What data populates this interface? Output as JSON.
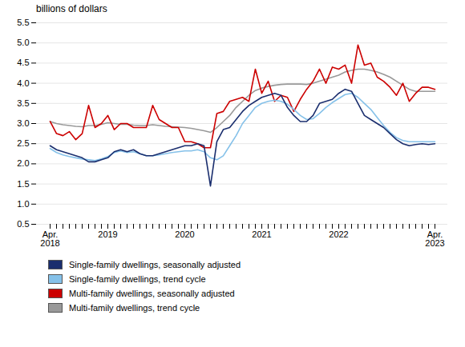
{
  "chart_data": {
    "type": "line",
    "title": "billions of dollars",
    "categories": [
      "Apr.\n2018",
      null,
      null,
      null,
      null,
      null,
      null,
      null,
      null,
      "2019",
      null,
      null,
      null,
      null,
      null,
      null,
      null,
      null,
      null,
      null,
      null,
      "2020",
      null,
      null,
      null,
      null,
      null,
      null,
      null,
      null,
      null,
      null,
      null,
      "2021",
      null,
      null,
      null,
      null,
      null,
      null,
      null,
      null,
      null,
      null,
      null,
      "2022",
      null,
      null,
      null,
      null,
      null,
      null,
      null,
      null,
      null,
      null,
      null,
      null,
      null,
      null,
      "Apr.\n2023"
    ],
    "series": [
      {
        "name": "Single-family dwellings, seasonally adjusted",
        "color": "#1a2e6e",
        "values": [
          2.45,
          2.35,
          2.3,
          2.25,
          2.2,
          2.15,
          2.05,
          2.05,
          2.1,
          2.15,
          2.3,
          2.35,
          2.3,
          2.35,
          2.25,
          2.2,
          2.2,
          2.25,
          2.3,
          2.35,
          2.4,
          2.45,
          2.45,
          2.5,
          2.45,
          1.45,
          2.55,
          2.85,
          2.9,
          3.1,
          3.3,
          3.45,
          3.55,
          3.65,
          3.7,
          3.75,
          3.7,
          3.4,
          3.2,
          3.05,
          3.05,
          3.2,
          3.5,
          3.55,
          3.6,
          3.75,
          3.85,
          3.8,
          3.5,
          3.2,
          3.1,
          3.0,
          2.9,
          2.75,
          2.6,
          2.5,
          2.45,
          2.48,
          2.5,
          2.48,
          2.5
        ]
      },
      {
        "name": "Single-family dwellings, trend cycle",
        "color": "#85c1e9",
        "values": [
          2.38,
          2.28,
          2.22,
          2.18,
          2.15,
          2.12,
          2.1,
          2.08,
          2.12,
          2.18,
          2.28,
          2.32,
          2.28,
          2.3,
          2.25,
          2.2,
          2.2,
          2.22,
          2.25,
          2.28,
          2.3,
          2.32,
          2.32,
          2.35,
          2.3,
          2.15,
          2.1,
          2.2,
          2.45,
          2.7,
          3.0,
          3.2,
          3.4,
          3.5,
          3.55,
          3.58,
          3.55,
          3.48,
          3.35,
          3.2,
          3.1,
          3.12,
          3.25,
          3.4,
          3.52,
          3.62,
          3.72,
          3.75,
          3.65,
          3.5,
          3.35,
          3.15,
          2.95,
          2.78,
          2.65,
          2.58,
          2.55,
          2.55,
          2.55,
          2.55,
          2.55
        ]
      },
      {
        "name": "Multi-family dwellings, seasonally adjusted",
        "color": "#cc0000",
        "values": [
          3.05,
          2.75,
          2.7,
          2.8,
          2.6,
          2.75,
          3.45,
          2.9,
          3.0,
          3.2,
          2.85,
          3.0,
          3.0,
          2.9,
          2.9,
          2.9,
          3.45,
          3.1,
          3.0,
          2.9,
          2.9,
          2.55,
          2.55,
          2.5,
          2.4,
          2.4,
          3.25,
          3.3,
          3.55,
          3.6,
          3.65,
          3.55,
          4.35,
          3.75,
          4.05,
          3.55,
          3.7,
          3.65,
          3.3,
          3.6,
          3.85,
          4.05,
          4.35,
          4.0,
          4.4,
          4.35,
          4.45,
          4.0,
          4.95,
          4.45,
          4.5,
          4.15,
          4.05,
          3.9,
          3.7,
          4.0,
          3.55,
          3.75,
          3.9,
          3.9,
          3.85
        ]
      },
      {
        "name": "Multi-family dwellings, trend cycle",
        "color": "#999999",
        "values": [
          3.05,
          3.0,
          2.97,
          2.95,
          2.93,
          2.92,
          2.95,
          2.95,
          2.98,
          3.02,
          3.0,
          2.98,
          2.98,
          2.96,
          2.95,
          2.95,
          2.97,
          2.95,
          2.93,
          2.92,
          2.91,
          2.9,
          2.88,
          2.85,
          2.82,
          2.78,
          2.9,
          3.05,
          3.2,
          3.4,
          3.55,
          3.7,
          3.82,
          3.88,
          3.92,
          3.95,
          3.97,
          3.98,
          3.98,
          3.98,
          3.97,
          4.0,
          4.05,
          4.1,
          4.15,
          4.2,
          4.28,
          4.32,
          4.35,
          4.35,
          4.32,
          4.28,
          4.22,
          4.15,
          4.05,
          3.95,
          3.85,
          3.8,
          3.8,
          3.8,
          3.8
        ]
      }
    ],
    "ylim": [
      0.5,
      5.5
    ],
    "yticks": [
      0.5,
      {
        "value": 1.0,
        "label": "1.0"
      },
      1.5,
      {
        "value": 2.0,
        "label": "2.0"
      },
      2.5,
      {
        "value": 3.0,
        "label": "3.0"
      },
      3.5,
      {
        "value": 4.0,
        "label": "4.0"
      },
      4.5,
      {
        "value": 5.0,
        "label": "5.0"
      },
      5.5
    ],
    "grid": true,
    "legend": "bottom"
  }
}
